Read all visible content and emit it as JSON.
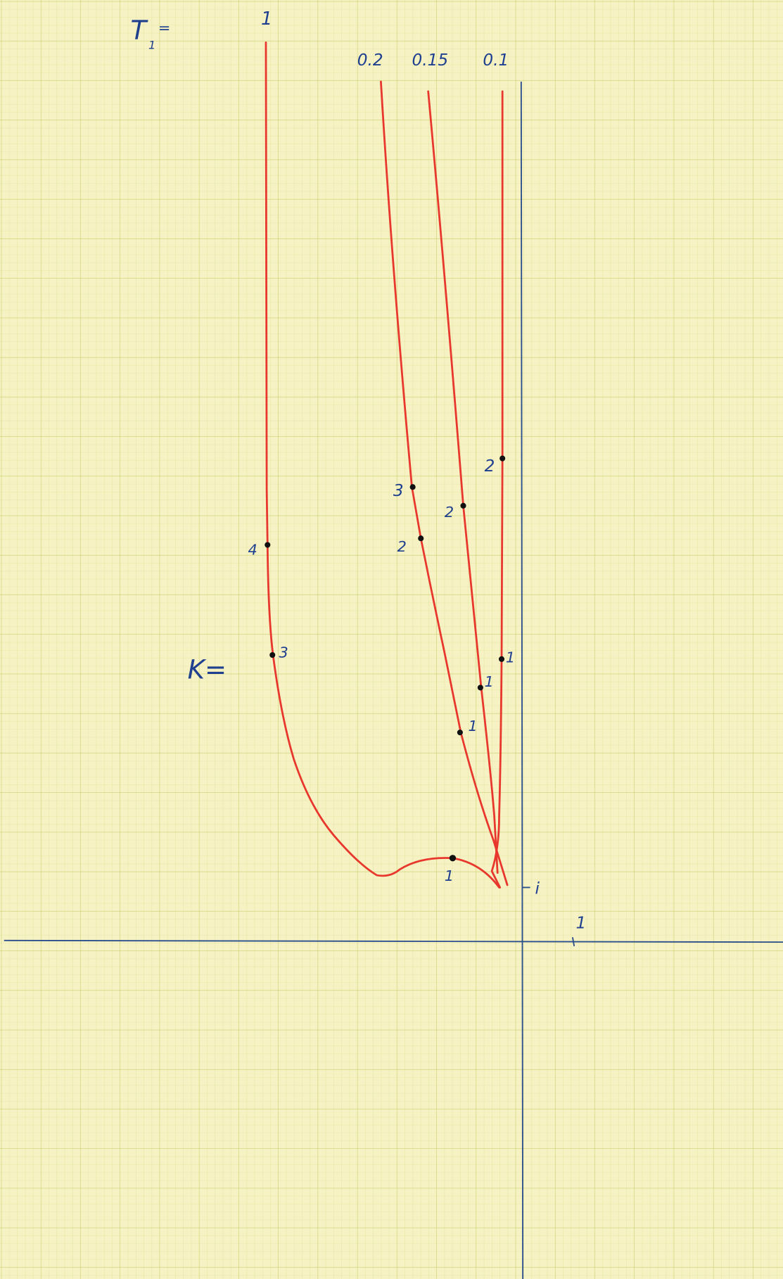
{
  "header": {
    "t_symbol": "T",
    "t_subscript": "1",
    "t_equals": "="
  },
  "curve_labels": [
    "1",
    "0.2",
    "0.15",
    "0.1"
  ],
  "k_label": "K=",
  "gain_labels": [
    "4",
    "3",
    "1",
    "3",
    "2",
    "1",
    "2",
    "1",
    "2",
    "1"
  ],
  "axis_labels": {
    "imaginary": "i",
    "real": "1"
  }
}
